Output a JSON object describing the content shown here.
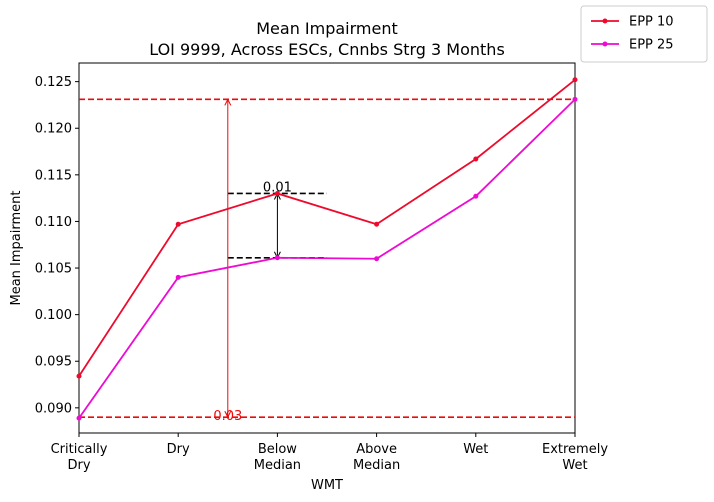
{
  "chart_data": {
    "type": "line",
    "title": "Mean Impairment",
    "subtitle": "LOI 9999, Across ESCs, Cnnbs Strg 3 Months",
    "xlabel": "WMT",
    "ylabel": "Mean Impairment",
    "categories": [
      [
        "Critically",
        "Dry"
      ],
      [
        "Dry"
      ],
      [
        "Below",
        "Median"
      ],
      [
        "Above",
        "Median"
      ],
      [
        "Wet"
      ],
      [
        "Extremely",
        "Wet"
      ]
    ],
    "ylim": [
      0.0873,
      0.127
    ],
    "yticks": [
      "0.090",
      "0.095",
      "0.100",
      "0.105",
      "0.110",
      "0.115",
      "0.120",
      "0.125"
    ],
    "grid": false,
    "legend_position": "top-right, outside plot",
    "series": [
      {
        "name": "EPP 10",
        "color": "#ee0a2c",
        "values": [
          0.0934,
          0.1097,
          0.113,
          0.1097,
          0.1167,
          0.1252
        ]
      },
      {
        "name": "EPP 25",
        "color": "#ee0ad2",
        "values": [
          0.0889,
          0.104,
          0.1061,
          0.106,
          0.1127,
          0.1231
        ]
      }
    ],
    "annotations": [
      {
        "kind": "hline",
        "y": 0.1231,
        "color": "#ee0a0a",
        "style": "dashed"
      },
      {
        "kind": "hline",
        "y": 0.089,
        "color": "#ee0a0a",
        "style": "dashed"
      },
      {
        "kind": "hsegment",
        "y": 0.113,
        "x_from": 1.5,
        "x_to": 2.5,
        "color": "#000000",
        "style": "dashed"
      },
      {
        "kind": "hsegment",
        "y": 0.1061,
        "x_from": 1.5,
        "x_to": 2.5,
        "color": "#000000",
        "style": "dashed"
      },
      {
        "kind": "double-arrow",
        "x": 2,
        "y_from": 0.1061,
        "y_to": 0.113,
        "color": "#000000",
        "label": "0.01"
      },
      {
        "kind": "double-arrow",
        "x": 1.5,
        "y_from": 0.089,
        "y_to": 0.1231,
        "color": "#ee0a0a",
        "label": "0.03"
      }
    ]
  }
}
